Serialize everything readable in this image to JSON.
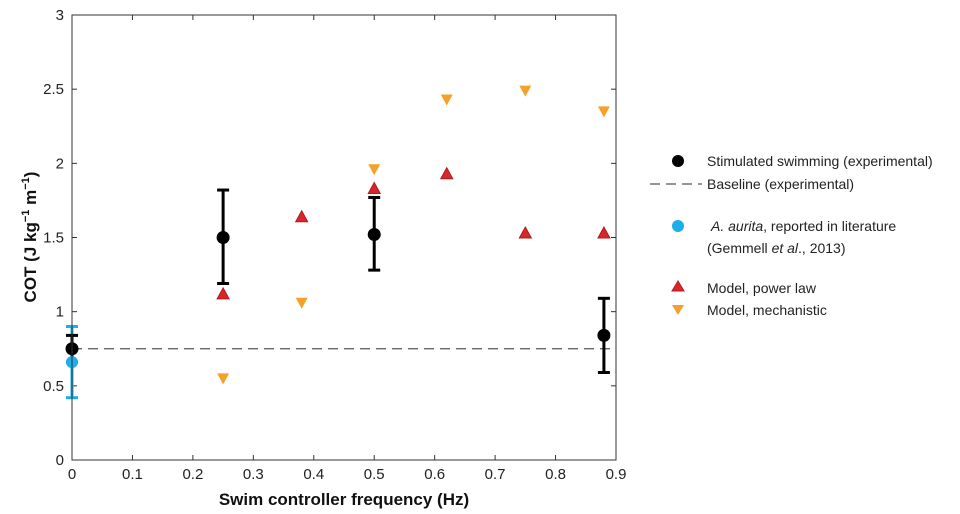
{
  "chart_data": {
    "type": "scatter",
    "xlabel": "Swim controller frequency (Hz)",
    "ylabel_main": "COT (J kg",
    "ylabel_sup1": "−1",
    "ylabel_mid": " m",
    "ylabel_sup2": "−1",
    "ylabel_end": ")",
    "xlim": [
      0,
      0.9
    ],
    "ylim": [
      0,
      3
    ],
    "xticks": [
      0,
      0.1,
      0.2,
      0.3,
      0.4,
      0.5,
      0.6,
      0.7,
      0.8,
      0.9
    ],
    "xtick_labels": [
      "0",
      "0.1",
      "0.2",
      "0.3",
      "0.4",
      "0.5",
      "0.6",
      "0.7",
      "0.8",
      "0.9"
    ],
    "yticks": [
      0,
      0.5,
      1,
      1.5,
      2,
      2.5,
      3
    ],
    "ytick_labels": [
      "0",
      "0.5",
      "1",
      "1.5",
      "2",
      "2.5",
      "3"
    ],
    "colors": {
      "experimental": "#000000",
      "literature": "#1eaee8",
      "power_law": "#d9262b",
      "mechanistic": "#f5a02a",
      "baseline": "#555555"
    },
    "series": [
      {
        "name": "Stimulated swimming (experimental)",
        "marker": "circle",
        "x": [
          0,
          0.25,
          0.5,
          0.88
        ],
        "y": [
          0.75,
          1.5,
          1.52,
          0.84
        ],
        "err_low": [
          0.66,
          1.19,
          1.28,
          0.59
        ],
        "err_high": [
          0.84,
          1.82,
          1.77,
          1.09
        ]
      },
      {
        "name": "Baseline (experimental)",
        "marker": "dashed-line",
        "y": 0.75
      },
      {
        "name_italic": "A. aurita",
        "name_rest": ", reported in literature",
        "name_line2_a": "(Gemmell ",
        "name_line2_italic": "et al",
        "name_line2_b": "., 2013)",
        "marker": "circle",
        "x": [
          0
        ],
        "y": [
          0.66
        ],
        "err_low": [
          0.42
        ],
        "err_high": [
          0.9
        ]
      },
      {
        "name": "Model, power law",
        "marker": "triangle-up",
        "x": [
          0.25,
          0.38,
          0.5,
          0.62,
          0.75,
          0.88
        ],
        "y": [
          1.12,
          1.64,
          1.83,
          1.93,
          1.53,
          1.53
        ]
      },
      {
        "name": "Model, mechanistic",
        "marker": "triangle-down",
        "x": [
          0.25,
          0.38,
          0.5,
          0.62,
          0.75,
          0.88
        ],
        "y": [
          0.55,
          1.06,
          1.96,
          2.43,
          2.49,
          2.35
        ]
      }
    ]
  }
}
